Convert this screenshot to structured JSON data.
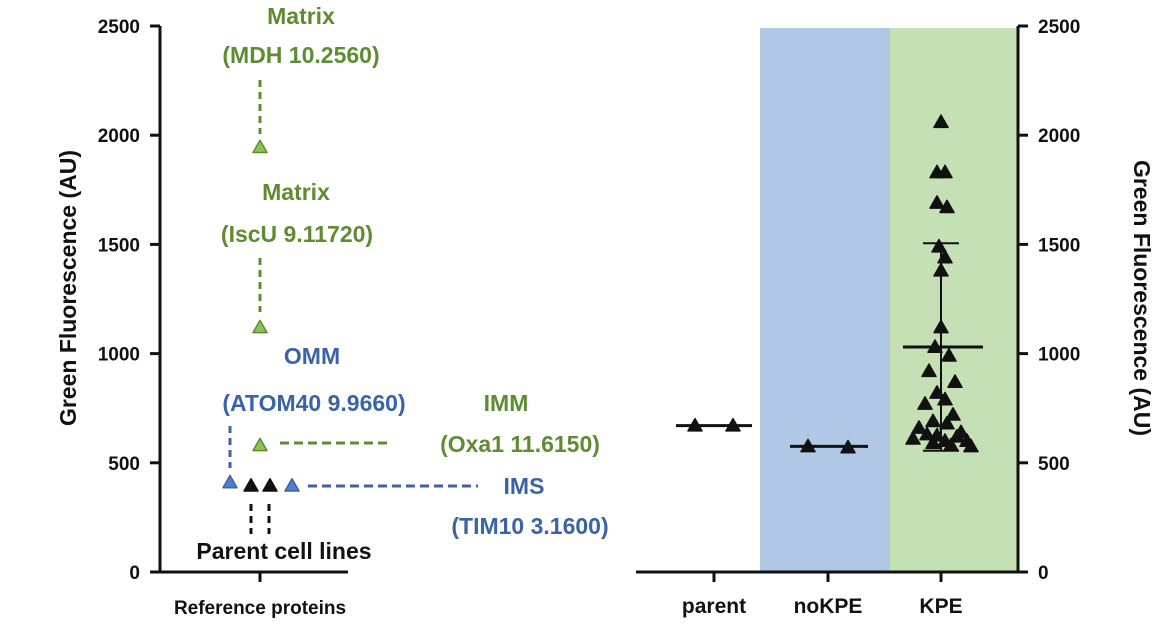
{
  "colors": {
    "green": "#5e8c31",
    "green_fill": "#8fc156",
    "blue": "#3a63a8",
    "blue_fill": "#4f80c9",
    "black": "#111111",
    "noKPE_band": "#b1c7e6",
    "KPE_band": "#c5e0b4"
  },
  "chart_data": [
    {
      "type": "scatter",
      "title": "",
      "xlabel": "Reference proteins",
      "ylabel": "Green Fluorescence (AU)",
      "ylim": [
        0,
        2500
      ],
      "yticks": [
        "0",
        "500",
        "1000",
        "1500",
        "2000",
        "2500"
      ],
      "grid": false,
      "reference_points": [
        {
          "label": "Matrix",
          "sublabel": "(MDH 10.2560)",
          "value": 1945,
          "group": "matrix",
          "color": "green"
        },
        {
          "label": "Matrix",
          "sublabel": "(IscU 9.11720)",
          "value": 1120,
          "group": "matrix",
          "color": "green"
        },
        {
          "label": "OMM",
          "sublabel": "(ATOM40 9.9660)",
          "value": 410,
          "group": "omm",
          "color": "blue"
        },
        {
          "label": "IMM",
          "sublabel": "(Oxa1 11.6150)",
          "value": 580,
          "group": "imm",
          "color": "green"
        },
        {
          "label": "IMS",
          "sublabel": "(TIM10 3.1600)",
          "value": 395,
          "group": "ims",
          "color": "blue"
        }
      ],
      "parent_points": [
        395,
        395
      ],
      "parent_label": "Parent cell lines"
    },
    {
      "type": "scatter",
      "title": "",
      "xlabel": "",
      "ylabel": "Green Fluorescence (AU)",
      "ylim": [
        0,
        2500
      ],
      "yticks": [
        "0",
        "500",
        "1000",
        "1500",
        "2000",
        "2500"
      ],
      "categories": [
        "parent",
        "noKPE",
        "KPE"
      ],
      "series": [
        {
          "name": "parent",
          "values": [
            670,
            670
          ],
          "mean": 670
        },
        {
          "name": "noKPE",
          "values": [
            575,
            570
          ],
          "mean": 575
        },
        {
          "name": "KPE",
          "values": [
            2060,
            1830,
            1830,
            1690,
            1670,
            1490,
            1440,
            1380,
            1120,
            1030,
            990,
            920,
            870,
            820,
            790,
            770,
            720,
            690,
            680,
            660,
            640,
            630,
            625,
            620,
            610,
            600,
            600,
            590,
            580,
            575
          ],
          "mean": 1030,
          "sd_upper": 1505,
          "sd_lower": 555
        }
      ],
      "shaded_bands": [
        "noKPE",
        "KPE"
      ]
    }
  ]
}
